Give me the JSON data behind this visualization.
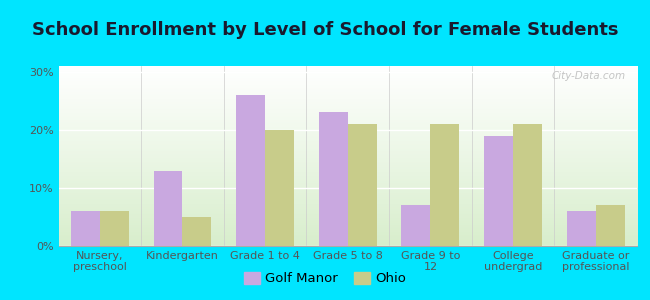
{
  "title": "School Enrollment by Level of School for Female Students",
  "categories": [
    "Nursery,\npreschool",
    "Kindergarten",
    "Grade 1 to 4",
    "Grade 5 to 8",
    "Grade 9 to\n12",
    "College\nundergrad",
    "Graduate or\nprofessional"
  ],
  "golf_manor": [
    6,
    13,
    26,
    23,
    7,
    19,
    6
  ],
  "ohio": [
    6,
    5,
    20,
    21,
    21,
    21,
    7
  ],
  "golf_manor_color": "#c9a8e0",
  "ohio_color": "#c8cc8a",
  "background_outer": "#00e5ff",
  "background_inner": "#eef5e0",
  "ylim": [
    0,
    31
  ],
  "yticks": [
    0,
    10,
    20,
    30
  ],
  "ytick_labels": [
    "0%",
    "10%",
    "20%",
    "30%"
  ],
  "bar_width": 0.35,
  "title_fontsize": 13,
  "tick_fontsize": 8,
  "legend_fontsize": 9.5,
  "watermark": "City-Data.com"
}
